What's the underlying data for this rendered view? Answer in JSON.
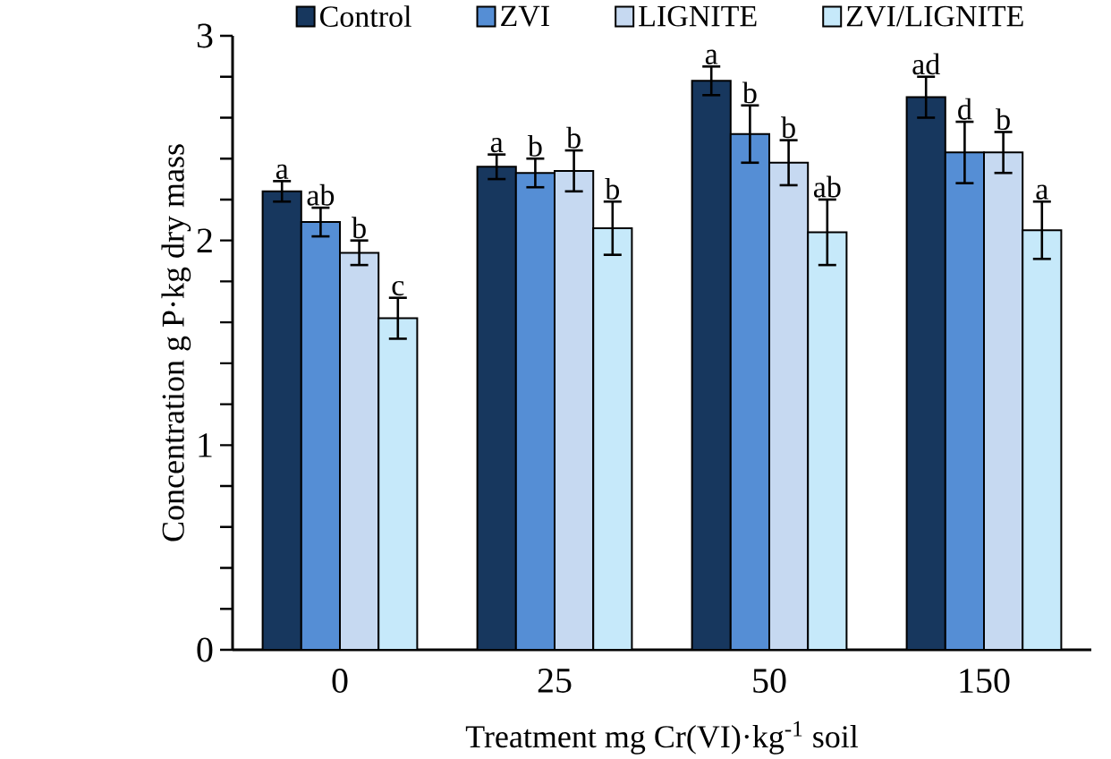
{
  "chart_data": {
    "type": "bar",
    "xlabel": "Treatment mg Cr(VI)·kg$^{-1}$ soil",
    "ylabel": "Concentration g P·kg dry mass",
    "categories": [
      "0",
      "25",
      "50",
      "150"
    ],
    "series": [
      {
        "name": "Control",
        "color": "#17375e",
        "values": [
          2.24,
          2.36,
          2.78,
          2.7
        ],
        "errors": [
          0.05,
          0.06,
          0.07,
          0.1
        ],
        "value_labels": [
          "a",
          "a",
          "a",
          "ad"
        ]
      },
      {
        "name": "ZVI",
        "color": "#558ed5",
        "values": [
          2.09,
          2.33,
          2.52,
          2.43
        ],
        "errors": [
          0.07,
          0.07,
          0.14,
          0.15
        ],
        "value_labels": [
          "ab",
          "b",
          "b",
          "d"
        ]
      },
      {
        "name": "LIGNITE",
        "color": "#c6d9f1",
        "values": [
          1.94,
          2.34,
          2.38,
          2.43
        ],
        "errors": [
          0.06,
          0.1,
          0.11,
          0.1
        ],
        "value_labels": [
          "b",
          "b",
          "b",
          "b"
        ]
      },
      {
        "name": "ZVI/LIGNITE",
        "color": "#c6e9fa",
        "values": [
          1.62,
          2.06,
          2.04,
          2.05
        ],
        "errors": [
          0.1,
          0.13,
          0.16,
          0.14
        ],
        "value_labels": [
          "c",
          "b",
          "ab",
          "a"
        ]
      }
    ],
    "ylim": [
      0,
      3
    ],
    "yticks": [
      0,
      {
        "value": 0.2,
        "label": null
      },
      {
        "value": 0.4,
        "label": null
      },
      {
        "value": 0.6,
        "label": null
      },
      {
        "value": 0.8,
        "label": null
      },
      1,
      {
        "value": 1.2,
        "label": null
      },
      {
        "value": 1.4,
        "label": null
      },
      {
        "value": 1.6,
        "label": null
      },
      {
        "value": 1.8,
        "label": null
      },
      2,
      {
        "value": 2.2,
        "label": null
      },
      {
        "value": 2.4,
        "label": null
      },
      {
        "value": 2.6,
        "label": null
      },
      {
        "value": 2.8,
        "label": null
      },
      3
    ],
    "legend": "top",
    "grid": false
  }
}
